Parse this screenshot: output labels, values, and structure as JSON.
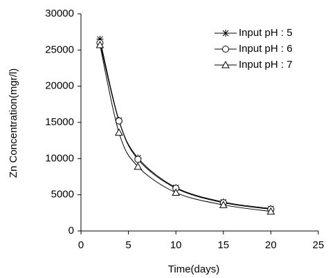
{
  "chart_data": {
    "type": "line",
    "x_label": "Time(days)",
    "y_label": "Zn Concentration(mgr/l)",
    "x": [
      2,
      4,
      6,
      10,
      15,
      20
    ],
    "series": [
      {
        "name": "Input pH : 5",
        "color": "#000000",
        "marker": "star",
        "values": [
          26500,
          15300,
          10100,
          6000,
          4000,
          3100
        ]
      },
      {
        "name": "Input pH : 6",
        "color": "#000000",
        "marker": "circle",
        "values": [
          26000,
          15200,
          9900,
          5900,
          3900,
          3000
        ]
      },
      {
        "name": "Input pH : 7",
        "color": "#000000",
        "marker": "triangle",
        "values": [
          25700,
          13600,
          8900,
          5300,
          3600,
          2700
        ]
      }
    ],
    "xlim": [
      0,
      25
    ],
    "xticks": [
      0,
      5,
      10,
      15,
      20,
      25
    ],
    "ylim": [
      0,
      30000
    ],
    "yticks": [
      0,
      5000,
      10000,
      15000,
      20000,
      25000,
      30000
    ],
    "grid": false,
    "legend": "upper right"
  }
}
